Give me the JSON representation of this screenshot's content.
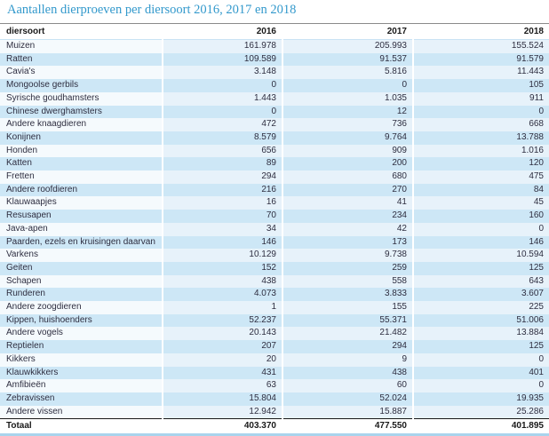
{
  "colors": {
    "title_blue": "#3399cc",
    "text_dark": "#2e2e40",
    "text_black": "#191919",
    "row_even_bg": "#cde7f6",
    "row_odd_col1_bg": "#f5fafd",
    "row_odd_data_bg": "#e7f2fa",
    "line_top": "#8a8a8a",
    "line_header": "#c9e3f4",
    "line_total": "#1a1a1a",
    "line_bottom": "#a9d4ed"
  },
  "chart_data": {
    "type": "table",
    "title": "Aantallen dierproeven per diersoort 2016, 2017 en 2018",
    "columns": [
      "diersoort",
      "2016",
      "2017",
      "2018"
    ],
    "rows": [
      [
        "Muizen",
        "161.978",
        "205.993",
        "155.524"
      ],
      [
        "Ratten",
        "109.589",
        "91.537",
        "91.579"
      ],
      [
        "Cavia's",
        "3.148",
        "5.816",
        "11.443"
      ],
      [
        "Mongoolse gerbils",
        "0",
        "0",
        "105"
      ],
      [
        "Syrische goudhamsters",
        "1.443",
        "1.035",
        "911"
      ],
      [
        "Chinese dwerghamsters",
        "0",
        "12",
        "0"
      ],
      [
        "Andere knaagdieren",
        "472",
        "736",
        "668"
      ],
      [
        "Konijnen",
        "8.579",
        "9.764",
        "13.788"
      ],
      [
        "Honden",
        "656",
        "909",
        "1.016"
      ],
      [
        "Katten",
        "89",
        "200",
        "120"
      ],
      [
        "Fretten",
        "294",
        "680",
        "475"
      ],
      [
        "Andere roofdieren",
        "216",
        "270",
        "84"
      ],
      [
        "Klauwaapjes",
        "16",
        "41",
        "45"
      ],
      [
        "Resusapen",
        "70",
        "234",
        "160"
      ],
      [
        "Java-apen",
        "34",
        "42",
        "0"
      ],
      [
        "Paarden, ezels en kruisingen daarvan",
        "146",
        "173",
        "146"
      ],
      [
        "Varkens",
        "10.129",
        "9.738",
        "10.594"
      ],
      [
        "Geiten",
        "152",
        "259",
        "125"
      ],
      [
        "Schapen",
        "438",
        "558",
        "643"
      ],
      [
        "Runderen",
        "4.073",
        "3.833",
        "3.607"
      ],
      [
        "Andere zoogdieren",
        "1",
        "155",
        "225"
      ],
      [
        "Kippen, huishoenders",
        "52.237",
        "55.371",
        "51.006"
      ],
      [
        "Andere vogels",
        "20.143",
        "21.482",
        "13.884"
      ],
      [
        "Reptielen",
        "207",
        "294",
        "125"
      ],
      [
        "Kikkers",
        "20",
        "9",
        "0"
      ],
      [
        "Klauwkikkers",
        "431",
        "438",
        "401"
      ],
      [
        "Amfibieën",
        "63",
        "60",
        "0"
      ],
      [
        "Zebravissen",
        "15.804",
        "52.024",
        "19.935"
      ],
      [
        "Andere vissen",
        "12.942",
        "15.887",
        "25.286"
      ]
    ],
    "total_row": [
      "Totaal",
      "403.370",
      "477.550",
      "401.895"
    ]
  }
}
